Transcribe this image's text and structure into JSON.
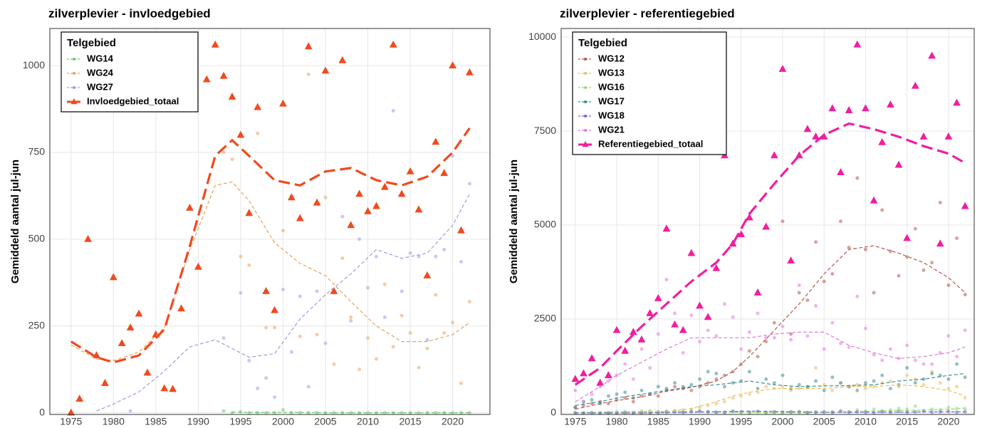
{
  "chart_data": [
    {
      "type": "scatter",
      "title": "zilverplevier - invloedgebied",
      "y_label": "Gemiddeld aantal jul-jun",
      "legend_title": "Telgebied",
      "legend": "top-left",
      "grid": true,
      "x": [
        1975,
        1976,
        1977,
        1978,
        1979,
        1980,
        1981,
        1982,
        1983,
        1984,
        1985,
        1986,
        1987,
        1988,
        1989,
        1990,
        1991,
        1992,
        1993,
        1994,
        1995,
        1996,
        1997,
        1998,
        1999,
        2000,
        2001,
        2002,
        2003,
        2004,
        2005,
        2006,
        2007,
        2008,
        2009,
        2010,
        2011,
        2012,
        2013,
        2014,
        2015,
        2016,
        2017,
        2018,
        2019,
        2020,
        2021,
        2022
      ],
      "trend_x": [
        1975,
        1978,
        1980,
        1983,
        1986,
        1989,
        1992,
        1994,
        1996,
        1999,
        2002,
        2005,
        2008,
        2011,
        2014,
        2017,
        2020,
        2022
      ],
      "xlim": [
        1972.5,
        2024.4
      ],
      "xticks": [
        1975,
        1980,
        1985,
        1990,
        1995,
        2000,
        2005,
        2010,
        2015,
        2020
      ],
      "ylim": [
        -5,
        1107
      ],
      "yticks": [
        0,
        250,
        500,
        750,
        1000
      ],
      "series": [
        {
          "name": "WG14",
          "color": "#6cc86c",
          "marker": "circle",
          "values": [
            null,
            null,
            null,
            null,
            null,
            null,
            null,
            null,
            null,
            null,
            null,
            null,
            null,
            null,
            null,
            null,
            null,
            null,
            5,
            0,
            3,
            0,
            0,
            0,
            0,
            8,
            0,
            0,
            0,
            0,
            0,
            0,
            0,
            0,
            0,
            0,
            0,
            0,
            0,
            0,
            0,
            0,
            0,
            0,
            0,
            0,
            0,
            0
          ],
          "trend": [
            null,
            null,
            null,
            null,
            null,
            null,
            null,
            2,
            1,
            1,
            1,
            0,
            0,
            0,
            0,
            0,
            0,
            0
          ]
        },
        {
          "name": "WG24",
          "color": "#e8a262",
          "marker": "circle",
          "values": [
            null,
            null,
            null,
            null,
            null,
            null,
            null,
            null,
            null,
            null,
            null,
            null,
            null,
            null,
            null,
            null,
            null,
            null,
            750,
            730,
            450,
            425,
            805,
            245,
            245,
            525,
            null,
            220,
            975,
            225,
            620,
            140,
            445,
            275,
            125,
            215,
            155,
            370,
            190,
            280,
            230,
            130,
            185,
            340,
            230,
            260,
            85,
            320
          ],
          "trend": [
            195,
            155,
            150,
            175,
            245,
            470,
            655,
            665,
            610,
            490,
            430,
            395,
            320,
            250,
            205,
            205,
            225,
            260
          ]
        },
        {
          "name": "WG27",
          "color": "#9c9ce8",
          "marker": "circle",
          "values": [
            null,
            null,
            null,
            null,
            null,
            null,
            null,
            5,
            null,
            null,
            null,
            null,
            null,
            null,
            null,
            null,
            null,
            null,
            215,
            null,
            345,
            150,
            70,
            100,
            45,
            355,
            175,
            335,
            75,
            350,
            200,
            345,
            565,
            265,
            500,
            360,
            450,
            275,
            870,
            350,
            460,
            450,
            210,
            450,
            470,
            740,
            435,
            660
          ],
          "trend": [
            null,
            5,
            25,
            60,
            120,
            190,
            210,
            185,
            160,
            170,
            270,
            340,
            400,
            470,
            445,
            460,
            540,
            630
          ]
        },
        {
          "name": "Invloedgebied_totaal",
          "color": "#f04a1e",
          "marker": "triangle",
          "values": [
            0,
            40,
            500,
            165,
            85,
            390,
            200,
            245,
            285,
            115,
            225,
            70,
            68,
            300,
            590,
            420,
            960,
            1060,
            970,
            910,
            800,
            575,
            880,
            350,
            295,
            890,
            620,
            560,
            1055,
            605,
            985,
            350,
            1015,
            540,
            630,
            580,
            595,
            650,
            1060,
            630,
            695,
            585,
            395,
            780,
            690,
            1000,
            525,
            980
          ],
          "trend": [
            205,
            160,
            145,
            165,
            240,
            480,
            740,
            785,
            740,
            670,
            655,
            695,
            705,
            670,
            655,
            680,
            750,
            820
          ]
        }
      ]
    },
    {
      "type": "scatter",
      "title": "zilverplevier - referentiegebied",
      "y_label": "Gemiddeld aantal jul-jun",
      "legend_title": "Telgebied",
      "legend": "top-left",
      "grid": true,
      "x": [
        1975,
        1976,
        1977,
        1978,
        1979,
        1980,
        1981,
        1982,
        1983,
        1984,
        1985,
        1986,
        1987,
        1988,
        1989,
        1990,
        1991,
        1992,
        1993,
        1994,
        1995,
        1996,
        1997,
        1998,
        1999,
        2000,
        2001,
        2002,
        2003,
        2004,
        2005,
        2006,
        2007,
        2008,
        2009,
        2010,
        2011,
        2012,
        2013,
        2014,
        2015,
        2016,
        2017,
        2018,
        2019,
        2020,
        2021,
        2022
      ],
      "trend_x": [
        1975,
        1978,
        1980,
        1983,
        1986,
        1989,
        1992,
        1994,
        1996,
        1999,
        2002,
        2005,
        2008,
        2011,
        2014,
        2017,
        2020,
        2022
      ],
      "xlim": [
        1973.3,
        2023.1
      ],
      "xticks": [
        1975,
        1980,
        1985,
        1990,
        1995,
        2000,
        2005,
        2010,
        2015,
        2020
      ],
      "ylim": [
        -40,
        10230
      ],
      "yticks": [
        0,
        2500,
        5000,
        7500,
        10000
      ],
      "series": [
        {
          "name": "WG12",
          "color": "#b5574a",
          "marker": "circle",
          "values": [
            150,
            200,
            250,
            300,
            250,
            350,
            400,
            300,
            450,
            500,
            450,
            600,
            700,
            650,
            600,
            700,
            800,
            900,
            1000,
            1100,
            1300,
            1650,
            1500,
            1900,
            2400,
            5100,
            2100,
            3200,
            3000,
            4550,
            3500,
            3700,
            5100,
            4400,
            6250,
            4350,
            3200,
            5400,
            4300,
            3650,
            4150,
            4900,
            3800,
            4000,
            5600,
            3400,
            4650,
            3150
          ],
          "trend": [
            100,
            250,
            330,
            430,
            580,
            680,
            850,
            1100,
            1500,
            2200,
            2900,
            3700,
            4350,
            4450,
            4250,
            4000,
            3600,
            3200
          ]
        },
        {
          "name": "WG13",
          "color": "#e6c060",
          "marker": "circle",
          "values": [
            0,
            0,
            0,
            0,
            0,
            0,
            0,
            0,
            10,
            20,
            30,
            50,
            60,
            80,
            100,
            150,
            200,
            250,
            300,
            400,
            450,
            500,
            550,
            700,
            650,
            700,
            600,
            650,
            700,
            1200,
            750,
            600,
            800,
            700,
            750,
            650,
            700,
            800,
            850,
            700,
            1000,
            900,
            750,
            1100,
            800,
            650,
            700,
            400
          ],
          "trend": [
            0,
            0,
            0,
            10,
            30,
            120,
            300,
            450,
            550,
            650,
            650,
            650,
            700,
            700,
            750,
            700,
            600,
            450
          ]
        },
        {
          "name": "WG16",
          "color": "#8edc6e",
          "marker": "circle",
          "values": [
            0,
            0,
            0,
            0,
            0,
            30,
            40,
            20,
            50,
            60,
            30,
            40,
            50,
            20,
            30,
            40,
            30,
            20,
            10,
            50,
            20,
            10,
            30,
            10,
            10,
            20,
            10,
            40,
            10,
            20,
            10,
            20,
            60,
            30,
            80,
            50,
            100,
            60,
            80,
            120,
            100,
            180,
            60,
            100,
            80,
            150,
            120,
            110
          ],
          "trend": [
            0,
            20,
            30,
            40,
            40,
            40,
            30,
            20,
            10,
            10,
            10,
            15,
            30,
            50,
            70,
            80,
            100,
            130
          ]
        },
        {
          "name": "WG17",
          "color": "#3c8c8c",
          "marker": "circle",
          "values": [
            150,
            300,
            350,
            250,
            450,
            500,
            550,
            400,
            600,
            500,
            700,
            650,
            800,
            700,
            750,
            900,
            1100,
            1050,
            700,
            800,
            850,
            1100,
            650,
            900,
            800,
            1000,
            650,
            750,
            700,
            850,
            600,
            950,
            800,
            700,
            600,
            800,
            850,
            1000,
            650,
            750,
            1200,
            800,
            900,
            1050,
            1000,
            900,
            1300,
            950
          ],
          "trend": [
            200,
            300,
            400,
            500,
            600,
            700,
            750,
            800,
            850,
            750,
            700,
            720,
            730,
            750,
            850,
            900,
            1000,
            1050
          ]
        },
        {
          "name": "WG18",
          "color": "#6a6ad0",
          "marker": "circle",
          "values": [
            0,
            0,
            0,
            0,
            0,
            0,
            0,
            0,
            0,
            0,
            10,
            20,
            30,
            20,
            40,
            50,
            30,
            20,
            20,
            40,
            30,
            20,
            40,
            20,
            30,
            20,
            30,
            20,
            10,
            20,
            30,
            20,
            40,
            20,
            30,
            20,
            10,
            30,
            20,
            40,
            20,
            30,
            50,
            20,
            30,
            40,
            20,
            30
          ],
          "trend": [
            0,
            0,
            0,
            0,
            10,
            20,
            30,
            40,
            50,
            40,
            30,
            20,
            20,
            20,
            20,
            30,
            30,
            30
          ]
        },
        {
          "name": "WG21",
          "color": "#e07ad8",
          "marker": "circle",
          "values": [
            600,
            300,
            500,
            700,
            850,
            1000,
            1300,
            900,
            1700,
            1200,
            2100,
            3550,
            2650,
            1600,
            2600,
            1900,
            2200,
            2050,
            2900,
            2550,
            1700,
            2150,
            2650,
            2000,
            2000,
            2300,
            1950,
            3400,
            2050,
            2850,
            1700,
            2400,
            1850,
            1750,
            3100,
            2250,
            1550,
            1400,
            1700,
            1450,
            1800,
            1400,
            1300,
            1300,
            1600,
            2050,
            1500,
            2200
          ],
          "trend": [
            300,
            700,
            1000,
            1350,
            1700,
            2000,
            2000,
            2000,
            2000,
            2100,
            2150,
            2150,
            1800,
            1600,
            1450,
            1500,
            1600,
            1750
          ]
        },
        {
          "name": "Referentiegebied_totaal",
          "color": "#f01ea0",
          "marker": "triangle",
          "values": [
            900,
            1050,
            1450,
            800,
            1000,
            2200,
            1650,
            2150,
            1950,
            2650,
            3050,
            4900,
            2350,
            2200,
            4250,
            2850,
            2550,
            3850,
            6850,
            4500,
            4750,
            5200,
            3200,
            4950,
            6850,
            9150,
            4050,
            6850,
            7550,
            7350,
            7350,
            8100,
            6400,
            8050,
            9800,
            8100,
            5650,
            7200,
            8200,
            6600,
            4650,
            8700,
            7350,
            9500,
            4500,
            7350,
            8250,
            5500
          ],
          "trend": [
            750,
            1200,
            1650,
            2300,
            2900,
            3500,
            4000,
            4500,
            5300,
            6100,
            6850,
            7400,
            7700,
            7550,
            7350,
            7100,
            6900,
            6650
          ]
        }
      ]
    }
  ]
}
